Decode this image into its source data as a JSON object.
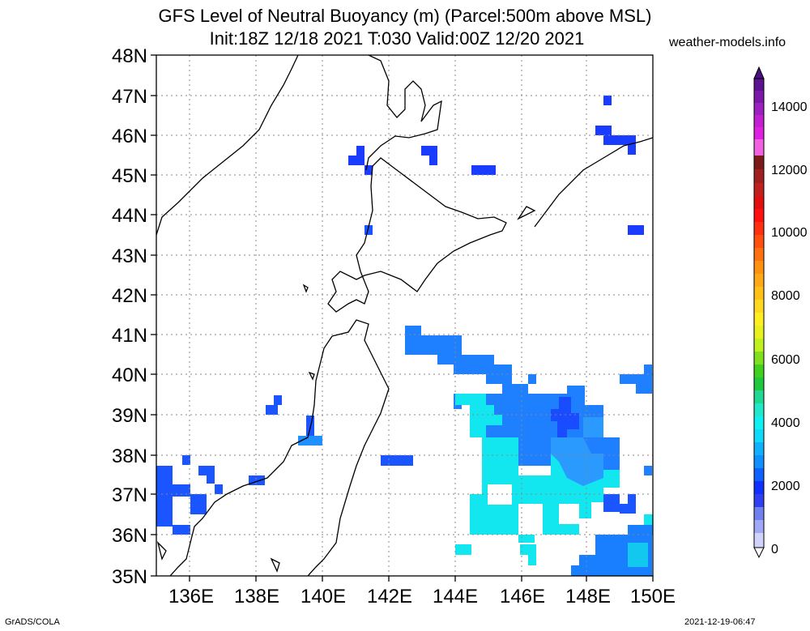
{
  "title_line1": "GFS Level of Neutral Buoyancy (m) (Parcel:500m above MSL)",
  "title_line2": "Init:18Z 12/18 2021 T:030 Valid:00Z 12/20 2021",
  "site": "weather-models.info",
  "footer_left": "GrADS/COLA",
  "footer_right": "2021-12-19-06:47",
  "lat_labels": [
    "48N",
    "47N",
    "46N",
    "45N",
    "44N",
    "43N",
    "42N",
    "41N",
    "40N",
    "39N",
    "38N",
    "37N",
    "36N",
    "35N"
  ],
  "lon_labels": [
    "136E",
    "138E",
    "140E",
    "142E",
    "144E",
    "146E",
    "148E",
    "150E"
  ],
  "colorbar_labels": [
    "14000",
    "12000",
    "10000",
    "8000",
    "6000",
    "4000",
    "2000",
    "0"
  ],
  "colors": {
    "blue_low": "#1a3cff",
    "blue_mid": "#2a7fff",
    "cyan": "#00e5ee",
    "cyan_light": "#30f0f0"
  }
}
